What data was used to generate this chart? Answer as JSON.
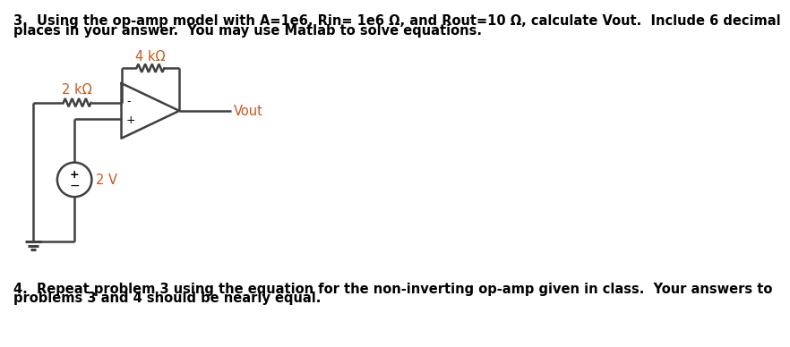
{
  "title_text": "3.  Using the op-amp model with A=1e6, Rin= 1e6 Ω, and Rout=10 Ω, calculate Vout.  Include 6 decimal",
  "title_line2": "places in your answer.  You may use Matlab to solve equations.",
  "problem4_line1": "4.  Repeat problem 3 using the equation for the non-inverting op-amp given in class.  Your answers to",
  "problem4_line2": "problems 3 and 4 should be nearly equal.",
  "label_4kohm": "4 kΩ",
  "label_2kohm": "2 kΩ",
  "label_2V": "2 V",
  "label_vout": "Vout",
  "label_plus_amp": "+",
  "label_minus_amp": "-",
  "label_plus_src": "+",
  "label_minus_src": "−",
  "bg_color": "#ffffff",
  "text_color": "#000000",
  "circuit_color": "#404040",
  "text_label_color": "#c8581a",
  "font_size": 10.5,
  "circuit_lw": 1.8
}
